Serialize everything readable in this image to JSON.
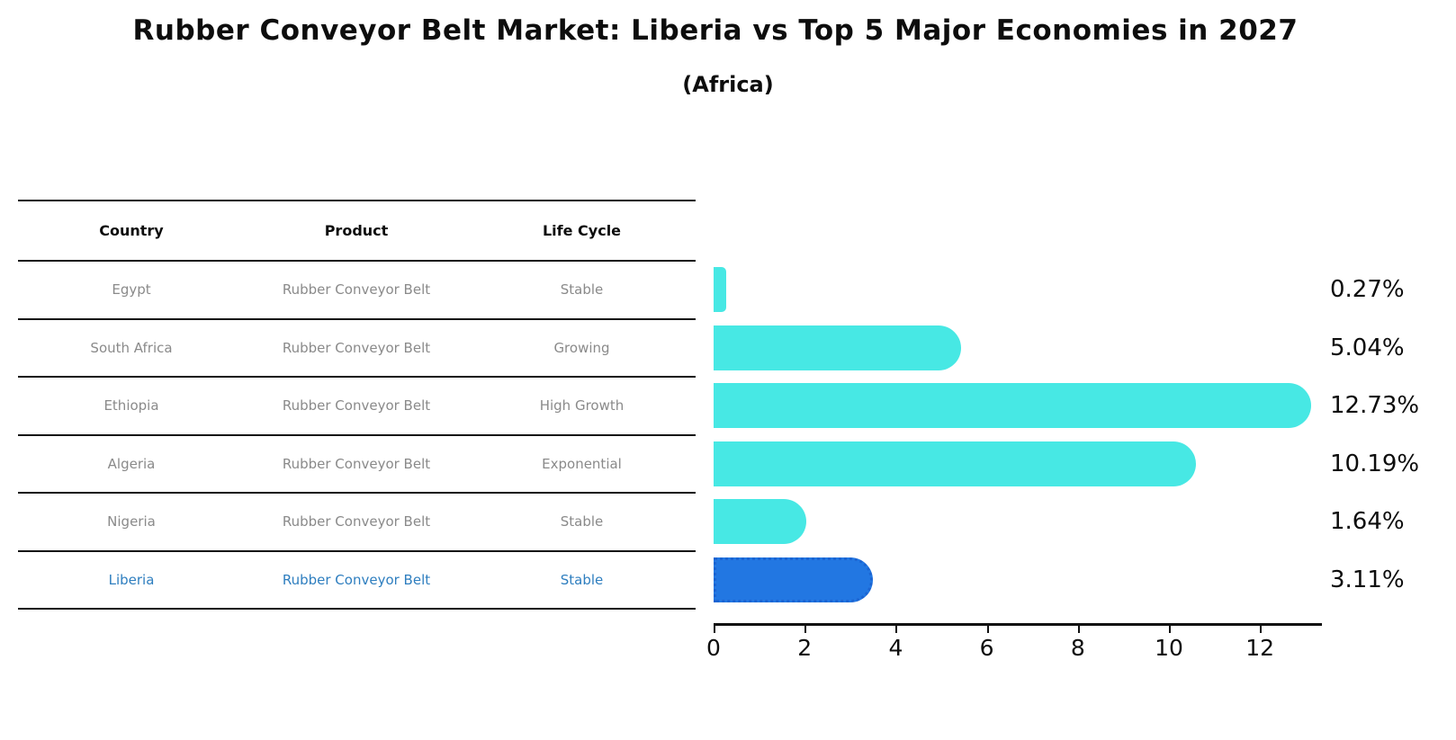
{
  "title": "Rubber Conveyor Belt Market: Liberia vs Top 5 Major Economies in 2027",
  "subtitle": "(Africa)",
  "table": {
    "headers": [
      "Country",
      "Product",
      "Life Cycle"
    ],
    "rows": [
      {
        "country": "Egypt",
        "product": "Rubber Conveyor Belt",
        "life_cycle": "Stable",
        "highlight": false
      },
      {
        "country": "South Africa",
        "product": "Rubber Conveyor Belt",
        "life_cycle": "Growing",
        "highlight": false
      },
      {
        "country": "Ethiopia",
        "product": "Rubber Conveyor Belt",
        "life_cycle": "High Growth",
        "highlight": false
      },
      {
        "country": "Algeria",
        "product": "Rubber Conveyor Belt",
        "life_cycle": "Exponential",
        "highlight": false
      },
      {
        "country": "Nigeria",
        "product": "Rubber Conveyor Belt",
        "life_cycle": "Stable",
        "highlight": false
      },
      {
        "country": "Liberia",
        "product": "Rubber Conveyor Belt",
        "life_cycle": "Stable",
        "highlight": true
      }
    ]
  },
  "chart_data": {
    "type": "bar",
    "orientation": "horizontal",
    "title": "Rubber Conveyor Belt Market: Liberia vs Top 5 Major Economies in 2027 (Africa)",
    "categories": [
      "Egypt",
      "South Africa",
      "Ethiopia",
      "Algeria",
      "Nigeria",
      "Liberia"
    ],
    "values": [
      0.27,
      5.04,
      12.73,
      10.19,
      1.64,
      3.11
    ],
    "value_labels": [
      "0.27%",
      "5.04%",
      "12.73%",
      "10.19%",
      "1.64%",
      "3.11%"
    ],
    "highlight_index": 5,
    "xlabel": "",
    "ylabel": "",
    "xticks": [
      0,
      2,
      4,
      6,
      8,
      10,
      12
    ],
    "xlim": [
      0,
      13.3
    ],
    "grid": false,
    "legend": false,
    "bar_color": "#47e8e4",
    "highlight_bar_color": "#2277e2",
    "highlight_bar_edge_color": "#1b64d2",
    "highlight_text_color": "#2e7ebf",
    "table_text_color": "#8a8a8a"
  }
}
